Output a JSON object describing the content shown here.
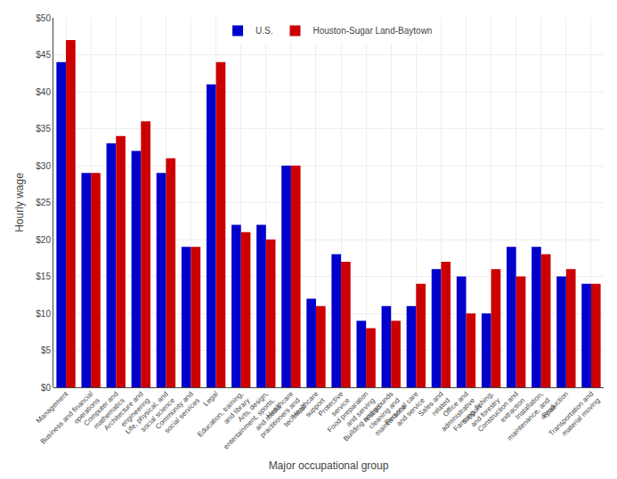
{
  "chart_data": {
    "type": "bar",
    "categories": [
      "Management",
      "Business and financial\noperations",
      "Computer and\nmathematics",
      "Architecture and\nengineering",
      "Life, physical, and\nsocial science",
      "Community and\nsocial services",
      "Legal",
      "Education, training,\nand library",
      "Arts, design,\nentertainment, sports,\nand media",
      "Healthcare\npractitioners and\ntechnical",
      "Healthcare\nsupport",
      "Protective\nservice",
      "Food preparation\nand serving\nrelated",
      "Building and grounds\ncleaning and\nmaintenance",
      "Personal care\nand service",
      "Sales and\nrelated",
      "Office and\nadministrative\nsupport",
      "Farming, fishing,\nand forestry",
      "Construction and\nextraction",
      "Installation,\nmaintenance, and\nrepair",
      "Production",
      "Transportation and\nmaterial moving"
    ],
    "series": [
      {
        "name": "U.S.",
        "color": "#0000CC",
        "values": [
          44,
          29,
          33,
          32,
          29,
          19,
          41,
          22,
          22,
          30,
          12,
          18,
          9,
          11,
          11,
          16,
          15,
          10,
          19,
          19,
          15,
          14
        ]
      },
      {
        "name": "Houston-Sugar Land-Baytown",
        "color": "#CC0000",
        "values": [
          47,
          29,
          34,
          36,
          31,
          19,
          44,
          21,
          20,
          30,
          11,
          17,
          8,
          9,
          14,
          17,
          10,
          16,
          15,
          18,
          16,
          14
        ]
      }
    ],
    "ylabel": "Hourly wage",
    "xlabel": "Major occupational group",
    "ylim": [
      0,
      50
    ],
    "yticks": [
      {
        "value": 0,
        "label": "$0"
      },
      {
        "value": 5,
        "label": "$5"
      },
      {
        "value": 10,
        "label": "$10"
      },
      {
        "value": 15,
        "label": "$15"
      },
      {
        "value": 20,
        "label": "$20"
      },
      {
        "value": 25,
        "label": "$25"
      },
      {
        "value": 30,
        "label": "$30"
      },
      {
        "value": 35,
        "label": "$35"
      },
      {
        "value": 40,
        "label": "$40"
      },
      {
        "value": 45,
        "label": "$45"
      },
      {
        "value": 50,
        "label": "$50"
      }
    ],
    "grid": true,
    "legend": "upper center"
  }
}
